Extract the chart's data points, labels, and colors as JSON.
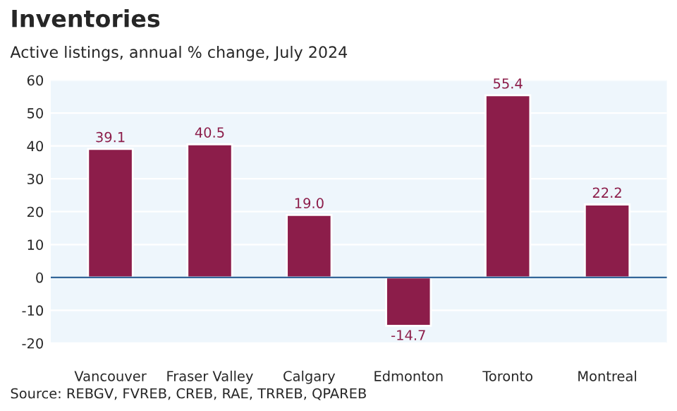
{
  "chart_data": {
    "type": "bar",
    "title": "Inventories",
    "subtitle": "Active listings, annual % change, July 2024",
    "categories": [
      "Vancouver",
      "Fraser Valley",
      "Calgary",
      "Edmonton",
      "Toronto",
      "Montreal"
    ],
    "values": [
      39.1,
      40.5,
      19.0,
      -14.7,
      55.4,
      22.2
    ],
    "value_labels": [
      "39.1",
      "40.5",
      "19.0",
      "-14.7",
      "55.4",
      "22.2"
    ],
    "color": "#8c1d4a",
    "ylim": [
      -20,
      60
    ],
    "yticks": [
      -20,
      -10,
      0,
      10,
      20,
      30,
      40,
      50,
      60
    ],
    "grid": "y",
    "ref_lines": [
      {
        "axis": "y",
        "value": 0,
        "color": "#336699"
      }
    ],
    "annotations": [
      "Source: REBGV, FVREB, CREB, RAE, TRREB, QPAREB"
    ]
  }
}
